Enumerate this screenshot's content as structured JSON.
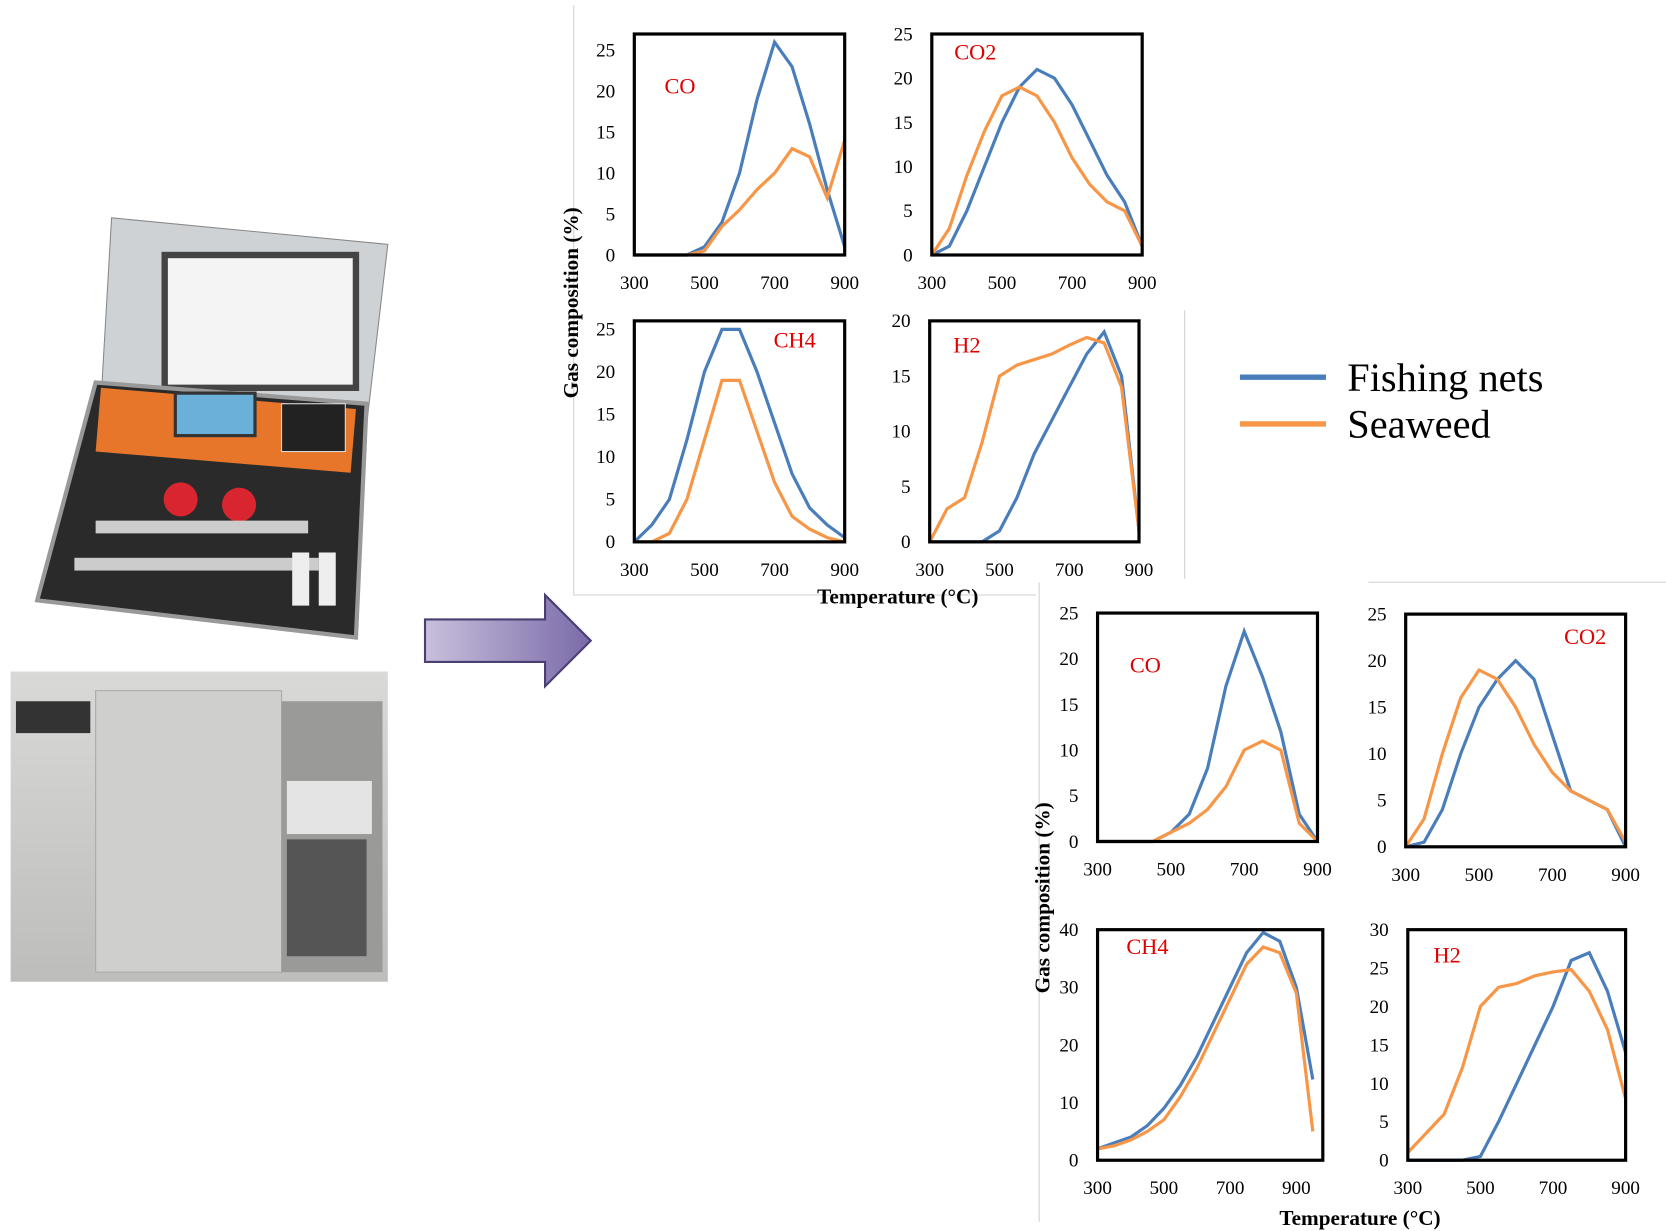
{
  "chart_data": [
    {
      "type": "line",
      "label": "CO",
      "ylabel": "Gas composition (%)",
      "x": [
        300,
        350,
        400,
        450,
        500,
        550,
        600,
        650,
        700,
        750,
        800,
        850,
        900
      ],
      "xlim": [
        300,
        900
      ],
      "xticks": [
        300,
        500,
        700,
        900
      ],
      "ylim": [
        0,
        27
      ],
      "yticks": [
        0,
        5,
        10,
        15,
        20,
        25
      ],
      "series": [
        {
          "name": "Fishing nets",
          "color": "#4a7ebb",
          "values": [
            0,
            0,
            0,
            0,
            1,
            4,
            10,
            19,
            26,
            23,
            16,
            8,
            1
          ]
        },
        {
          "name": "Seaweed",
          "color": "#f79646",
          "values": [
            0,
            0,
            0,
            0,
            0.5,
            3.5,
            5.5,
            8,
            10,
            13,
            12,
            7,
            14
          ]
        }
      ]
    },
    {
      "type": "line",
      "label": "CO2",
      "x": [
        300,
        350,
        400,
        450,
        500,
        550,
        600,
        650,
        700,
        750,
        800,
        850,
        900
      ],
      "xlim": [
        300,
        900
      ],
      "xticks": [
        300,
        500,
        700,
        900
      ],
      "ylim": [
        0,
        25
      ],
      "yticks": [
        0,
        5,
        10,
        15,
        20,
        25
      ],
      "series": [
        {
          "color": "#4a7ebb",
          "values": [
            0,
            1,
            5,
            10,
            15,
            19,
            21,
            20,
            17,
            13,
            9,
            6,
            1
          ]
        },
        {
          "color": "#f79646",
          "values": [
            0,
            3,
            9,
            14,
            18,
            19,
            18,
            15,
            11,
            8,
            6,
            5,
            1
          ]
        }
      ]
    },
    {
      "type": "line",
      "label": "CH4",
      "xlabel": "Temperature (°C)",
      "x": [
        300,
        350,
        400,
        450,
        500,
        550,
        600,
        650,
        700,
        750,
        800,
        850,
        900
      ],
      "xlim": [
        300,
        900
      ],
      "xticks": [
        300,
        500,
        700,
        900
      ],
      "ylim": [
        0,
        26
      ],
      "yticks": [
        0,
        5,
        10,
        15,
        20,
        25
      ],
      "series": [
        {
          "color": "#4a7ebb",
          "values": [
            0,
            2,
            5,
            12,
            20,
            25,
            25,
            20,
            14,
            8,
            4,
            2,
            0.5
          ]
        },
        {
          "color": "#f79646",
          "values": [
            0,
            0,
            1,
            5,
            12,
            19,
            19,
            13,
            7,
            3,
            1.5,
            0.5,
            0
          ]
        }
      ]
    },
    {
      "type": "line",
      "label": "H2",
      "x": [
        300,
        350,
        400,
        450,
        500,
        550,
        600,
        650,
        700,
        750,
        800,
        850,
        900
      ],
      "xlim": [
        300,
        900
      ],
      "xticks": [
        300,
        500,
        700,
        900
      ],
      "ylim": [
        0,
        20
      ],
      "yticks": [
        0,
        5,
        10,
        15,
        20
      ],
      "series": [
        {
          "color": "#4a7ebb",
          "values": [
            0,
            0,
            0,
            0,
            1,
            4,
            8,
            11,
            14,
            17,
            19,
            15,
            1
          ]
        },
        {
          "color": "#f79646",
          "values": [
            0,
            3,
            4,
            9,
            15,
            16,
            16.5,
            17,
            17.8,
            18.5,
            18,
            14,
            1
          ]
        }
      ]
    },
    {
      "type": "line",
      "label": "CO",
      "ylabel": "Gas composition (%)",
      "x": [
        300,
        350,
        400,
        450,
        500,
        550,
        600,
        650,
        700,
        750,
        800,
        850,
        900
      ],
      "xlim": [
        300,
        900
      ],
      "xticks": [
        300,
        500,
        700,
        900
      ],
      "ylim": [
        0,
        25
      ],
      "yticks": [
        0,
        5,
        10,
        15,
        20,
        25
      ],
      "series": [
        {
          "color": "#4a7ebb",
          "values": [
            0,
            0,
            0,
            0,
            1,
            3,
            8,
            17,
            23,
            18,
            12,
            3,
            0
          ]
        },
        {
          "color": "#f79646",
          "values": [
            0,
            0,
            0,
            0,
            1,
            2,
            3.5,
            6,
            10,
            11,
            10,
            2,
            0
          ]
        }
      ]
    },
    {
      "type": "line",
      "label": "CO2",
      "x": [
        300,
        350,
        400,
        450,
        500,
        550,
        600,
        650,
        700,
        750,
        800,
        850,
        900
      ],
      "xlim": [
        300,
        900
      ],
      "xticks": [
        300,
        500,
        700,
        900
      ],
      "ylim": [
        0,
        25
      ],
      "yticks": [
        0,
        5,
        10,
        15,
        20,
        25
      ],
      "series": [
        {
          "color": "#4a7ebb",
          "values": [
            0,
            0.5,
            4,
            10,
            15,
            18,
            20,
            18,
            12,
            6,
            5,
            4,
            0
          ]
        },
        {
          "color": "#f79646",
          "values": [
            0,
            3,
            10,
            16,
            19,
            18,
            15,
            11,
            8,
            6,
            5,
            4,
            0.5
          ]
        }
      ]
    },
    {
      "type": "line",
      "label": "CH4",
      "xlabel": "Temperature (°C)",
      "x": [
        300,
        350,
        400,
        450,
        500,
        550,
        600,
        650,
        700,
        750,
        800,
        850,
        900,
        950
      ],
      "xlim": [
        300,
        980
      ],
      "xticks": [
        300,
        500,
        700,
        900
      ],
      "ylim": [
        0,
        40
      ],
      "yticks": [
        0,
        10,
        20,
        30,
        40
      ],
      "series": [
        {
          "color": "#4a7ebb",
          "values": [
            2,
            3,
            4,
            6,
            9,
            13,
            18,
            24,
            30,
            36,
            39.5,
            38,
            30,
            14
          ]
        },
        {
          "color": "#f79646",
          "values": [
            2,
            2.5,
            3.5,
            5,
            7,
            11,
            16,
            22,
            28,
            34,
            37,
            36,
            29,
            5
          ]
        }
      ]
    },
    {
      "type": "line",
      "label": "H2",
      "x": [
        300,
        350,
        400,
        450,
        500,
        550,
        600,
        650,
        700,
        750,
        800,
        850,
        900
      ],
      "xlim": [
        300,
        900
      ],
      "xticks": [
        300,
        500,
        700,
        900
      ],
      "ylim": [
        0,
        30
      ],
      "yticks": [
        0,
        5,
        10,
        15,
        20,
        25,
        30
      ],
      "series": [
        {
          "color": "#4a7ebb",
          "values": [
            0,
            0,
            0,
            0,
            0.5,
            5,
            10,
            15,
            20,
            26,
            27,
            22,
            14
          ]
        },
        {
          "color": "#f79646",
          "values": [
            1,
            3.5,
            6,
            12,
            20,
            22.5,
            23,
            24,
            24.5,
            24.8,
            22,
            17,
            8
          ]
        }
      ]
    }
  ]
}
